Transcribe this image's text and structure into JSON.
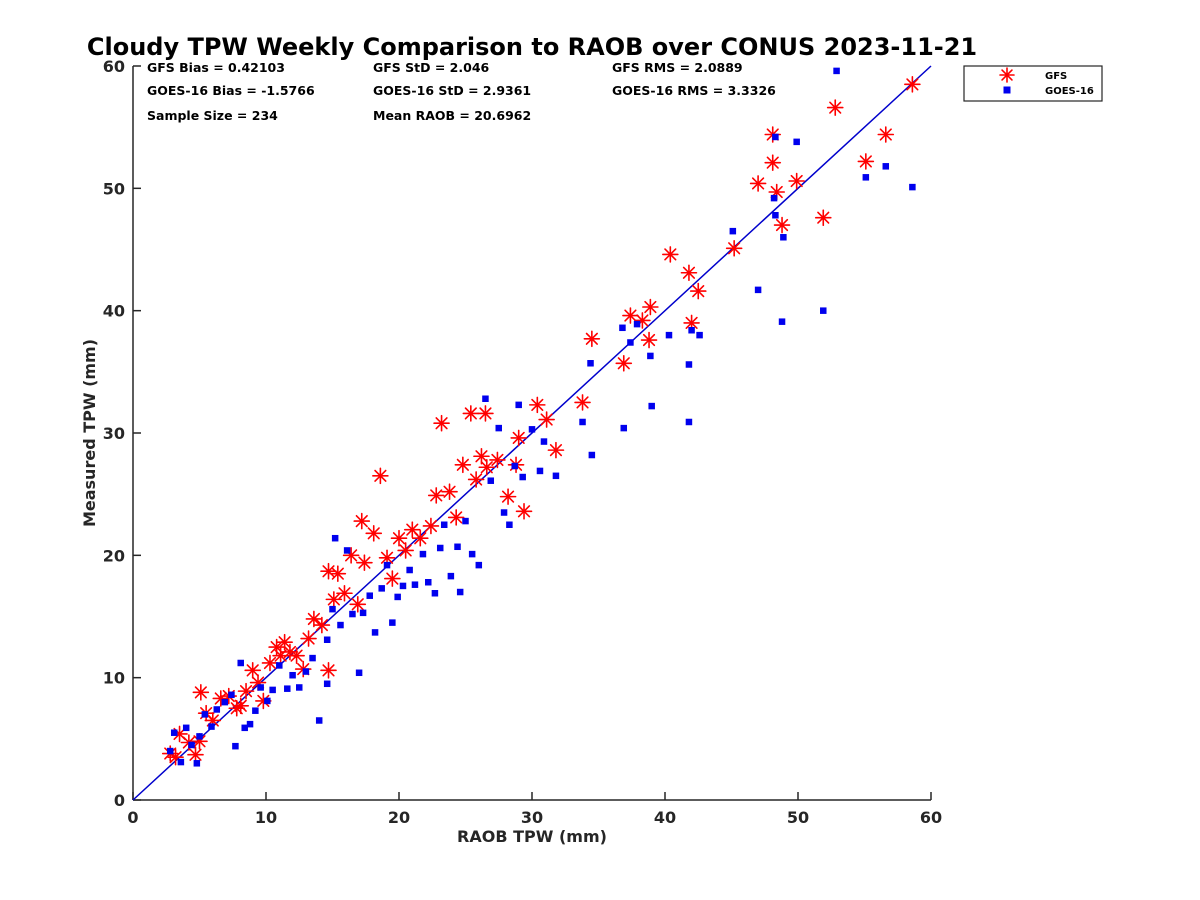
{
  "chart_data": {
    "type": "scatter",
    "title": "Cloudy TPW Weekly Comparison to RAOB over CONUS 2023-11-21",
    "xlabel": "RAOB TPW (mm)",
    "ylabel": "Measured TPW (mm)",
    "xlim": [
      0,
      60
    ],
    "ylim": [
      0,
      60
    ],
    "xticks": [
      "0",
      "10",
      "20",
      "30",
      "40",
      "50",
      "60"
    ],
    "yticks": [
      "0",
      "10",
      "20",
      "30",
      "40",
      "50",
      "60"
    ],
    "grid": false,
    "legend_position": "top-right outside",
    "reference_line": {
      "x": [
        0,
        60
      ],
      "y": [
        0,
        60
      ],
      "color": "#0000cc"
    },
    "stats": [
      "GFS Bias = 0.42103",
      "GFS StD = 2.046",
      "GFS RMS = 2.0889",
      "GOES-16 Bias = -1.5766",
      "GOES-16 StD = 2.9361",
      "GOES-16 RMS = 3.3326",
      "Sample Size = 234",
      "Mean RAOB = 20.6962"
    ],
    "series": [
      {
        "name": "GFS",
        "color": "#ff0000",
        "marker": "asterisk",
        "points": [
          [
            2.8,
            3.8
          ],
          [
            3.2,
            3.5
          ],
          [
            3.5,
            5.4
          ],
          [
            4.2,
            4.7
          ],
          [
            4.7,
            3.7
          ],
          [
            5.0,
            4.8
          ],
          [
            5.1,
            8.8
          ],
          [
            5.5,
            7.1
          ],
          [
            6.0,
            6.5
          ],
          [
            6.6,
            8.3
          ],
          [
            7.2,
            8.5
          ],
          [
            7.8,
            7.5
          ],
          [
            8.1,
            7.7
          ],
          [
            8.5,
            8.9
          ],
          [
            9.0,
            10.6
          ],
          [
            9.4,
            9.6
          ],
          [
            9.8,
            8.1
          ],
          [
            10.3,
            11.2
          ],
          [
            10.8,
            12.5
          ],
          [
            11.1,
            11.8
          ],
          [
            11.4,
            12.9
          ],
          [
            11.8,
            12.1
          ],
          [
            12.3,
            11.8
          ],
          [
            12.8,
            10.7
          ],
          [
            13.2,
            13.2
          ],
          [
            13.6,
            14.8
          ],
          [
            14.2,
            14.3
          ],
          [
            14.7,
            10.6
          ],
          [
            14.7,
            18.7
          ],
          [
            15.1,
            16.4
          ],
          [
            15.4,
            18.5
          ],
          [
            15.9,
            16.9
          ],
          [
            16.4,
            20.0
          ],
          [
            16.9,
            16.0
          ],
          [
            17.4,
            19.4
          ],
          [
            17.2,
            22.8
          ],
          [
            18.1,
            21.8
          ],
          [
            18.6,
            26.5
          ],
          [
            19.1,
            19.8
          ],
          [
            19.5,
            18.1
          ],
          [
            20.0,
            21.4
          ],
          [
            20.5,
            20.4
          ],
          [
            21.0,
            22.1
          ],
          [
            21.6,
            21.4
          ],
          [
            22.4,
            22.4
          ],
          [
            22.8,
            24.9
          ],
          [
            23.2,
            30.8
          ],
          [
            23.8,
            25.2
          ],
          [
            24.3,
            23.1
          ],
          [
            24.8,
            27.4
          ],
          [
            25.4,
            31.6
          ],
          [
            25.8,
            26.2
          ],
          [
            26.2,
            28.1
          ],
          [
            26.5,
            31.6
          ],
          [
            26.6,
            27.2
          ],
          [
            27.4,
            27.8
          ],
          [
            28.2,
            24.8
          ],
          [
            28.8,
            27.4
          ],
          [
            29.4,
            23.6
          ],
          [
            29.0,
            29.6
          ],
          [
            30.4,
            32.3
          ],
          [
            31.1,
            31.1
          ],
          [
            31.8,
            28.6
          ],
          [
            33.8,
            32.5
          ],
          [
            34.5,
            37.7
          ],
          [
            36.9,
            35.7
          ],
          [
            37.4,
            39.6
          ],
          [
            38.3,
            39.2
          ],
          [
            38.9,
            40.3
          ],
          [
            38.8,
            37.6
          ],
          [
            40.4,
            44.6
          ],
          [
            41.8,
            43.1
          ],
          [
            42.0,
            39.0
          ],
          [
            42.5,
            41.6
          ],
          [
            45.2,
            45.1
          ],
          [
            47.0,
            50.4
          ],
          [
            48.1,
            54.4
          ],
          [
            48.1,
            52.1
          ],
          [
            48.4,
            49.7
          ],
          [
            48.8,
            47.0
          ],
          [
            49.9,
            50.6
          ],
          [
            51.9,
            47.6
          ],
          [
            52.8,
            56.6
          ],
          [
            55.1,
            52.2
          ],
          [
            56.6,
            54.4
          ],
          [
            58.6,
            58.5
          ]
        ]
      },
      {
        "name": "GOES-16",
        "color": "#0000ee",
        "marker": "square",
        "points": [
          [
            2.8,
            4.0
          ],
          [
            3.1,
            5.5
          ],
          [
            3.6,
            3.1
          ],
          [
            4.0,
            5.9
          ],
          [
            4.4,
            4.5
          ],
          [
            4.8,
            3.0
          ],
          [
            5.0,
            5.2
          ],
          [
            5.4,
            7.0
          ],
          [
            5.9,
            6.0
          ],
          [
            6.3,
            7.4
          ],
          [
            6.9,
            8.0
          ],
          [
            7.4,
            8.6
          ],
          [
            7.7,
            4.4
          ],
          [
            8.1,
            11.2
          ],
          [
            8.4,
            5.9
          ],
          [
            8.8,
            6.2
          ],
          [
            9.2,
            7.3
          ],
          [
            9.6,
            9.2
          ],
          [
            10.1,
            8.1
          ],
          [
            10.5,
            9.0
          ],
          [
            11.0,
            11.0
          ],
          [
            11.6,
            9.1
          ],
          [
            12.0,
            10.2
          ],
          [
            12.5,
            9.2
          ],
          [
            13.0,
            10.5
          ],
          [
            13.5,
            11.6
          ],
          [
            14.0,
            6.5
          ],
          [
            14.6,
            9.5
          ],
          [
            14.6,
            13.1
          ],
          [
            15.0,
            15.6
          ],
          [
            15.2,
            21.4
          ],
          [
            15.6,
            14.3
          ],
          [
            16.1,
            20.4
          ],
          [
            16.5,
            15.2
          ],
          [
            17.0,
            10.4
          ],
          [
            17.3,
            15.3
          ],
          [
            17.8,
            16.7
          ],
          [
            18.2,
            13.7
          ],
          [
            18.7,
            17.3
          ],
          [
            19.1,
            19.2
          ],
          [
            19.5,
            14.5
          ],
          [
            19.9,
            16.6
          ],
          [
            20.3,
            17.5
          ],
          [
            20.8,
            18.8
          ],
          [
            21.2,
            17.6
          ],
          [
            21.8,
            20.1
          ],
          [
            22.2,
            17.8
          ],
          [
            22.7,
            16.9
          ],
          [
            23.1,
            20.6
          ],
          [
            23.4,
            22.5
          ],
          [
            23.9,
            18.3
          ],
          [
            24.4,
            20.7
          ],
          [
            24.6,
            17.0
          ],
          [
            25.0,
            22.8
          ],
          [
            25.5,
            20.1
          ],
          [
            26.0,
            19.2
          ],
          [
            26.5,
            32.8
          ],
          [
            26.9,
            26.1
          ],
          [
            27.5,
            30.4
          ],
          [
            27.9,
            23.5
          ],
          [
            28.3,
            22.5
          ],
          [
            28.7,
            27.3
          ],
          [
            29.0,
            32.3
          ],
          [
            29.3,
            26.4
          ],
          [
            30.0,
            30.3
          ],
          [
            30.6,
            26.9
          ],
          [
            30.9,
            29.3
          ],
          [
            31.8,
            26.5
          ],
          [
            33.8,
            30.9
          ],
          [
            34.4,
            35.7
          ],
          [
            34.5,
            28.2
          ],
          [
            36.8,
            38.6
          ],
          [
            36.9,
            30.4
          ],
          [
            37.4,
            37.4
          ],
          [
            37.9,
            38.9
          ],
          [
            38.9,
            36.3
          ],
          [
            39.0,
            32.2
          ],
          [
            40.3,
            38.0
          ],
          [
            41.8,
            35.6
          ],
          [
            41.8,
            30.9
          ],
          [
            42.0,
            38.4
          ],
          [
            42.6,
            38.0
          ],
          [
            45.1,
            46.5
          ],
          [
            47.0,
            41.7
          ],
          [
            48.2,
            49.2
          ],
          [
            48.3,
            47.8
          ],
          [
            48.3,
            54.2
          ],
          [
            48.8,
            39.1
          ],
          [
            48.9,
            46.0
          ],
          [
            49.9,
            53.8
          ],
          [
            51.9,
            40.0
          ],
          [
            52.9,
            59.6
          ],
          [
            55.1,
            50.9
          ],
          [
            56.6,
            51.8
          ],
          [
            58.6,
            50.1
          ]
        ]
      }
    ]
  }
}
